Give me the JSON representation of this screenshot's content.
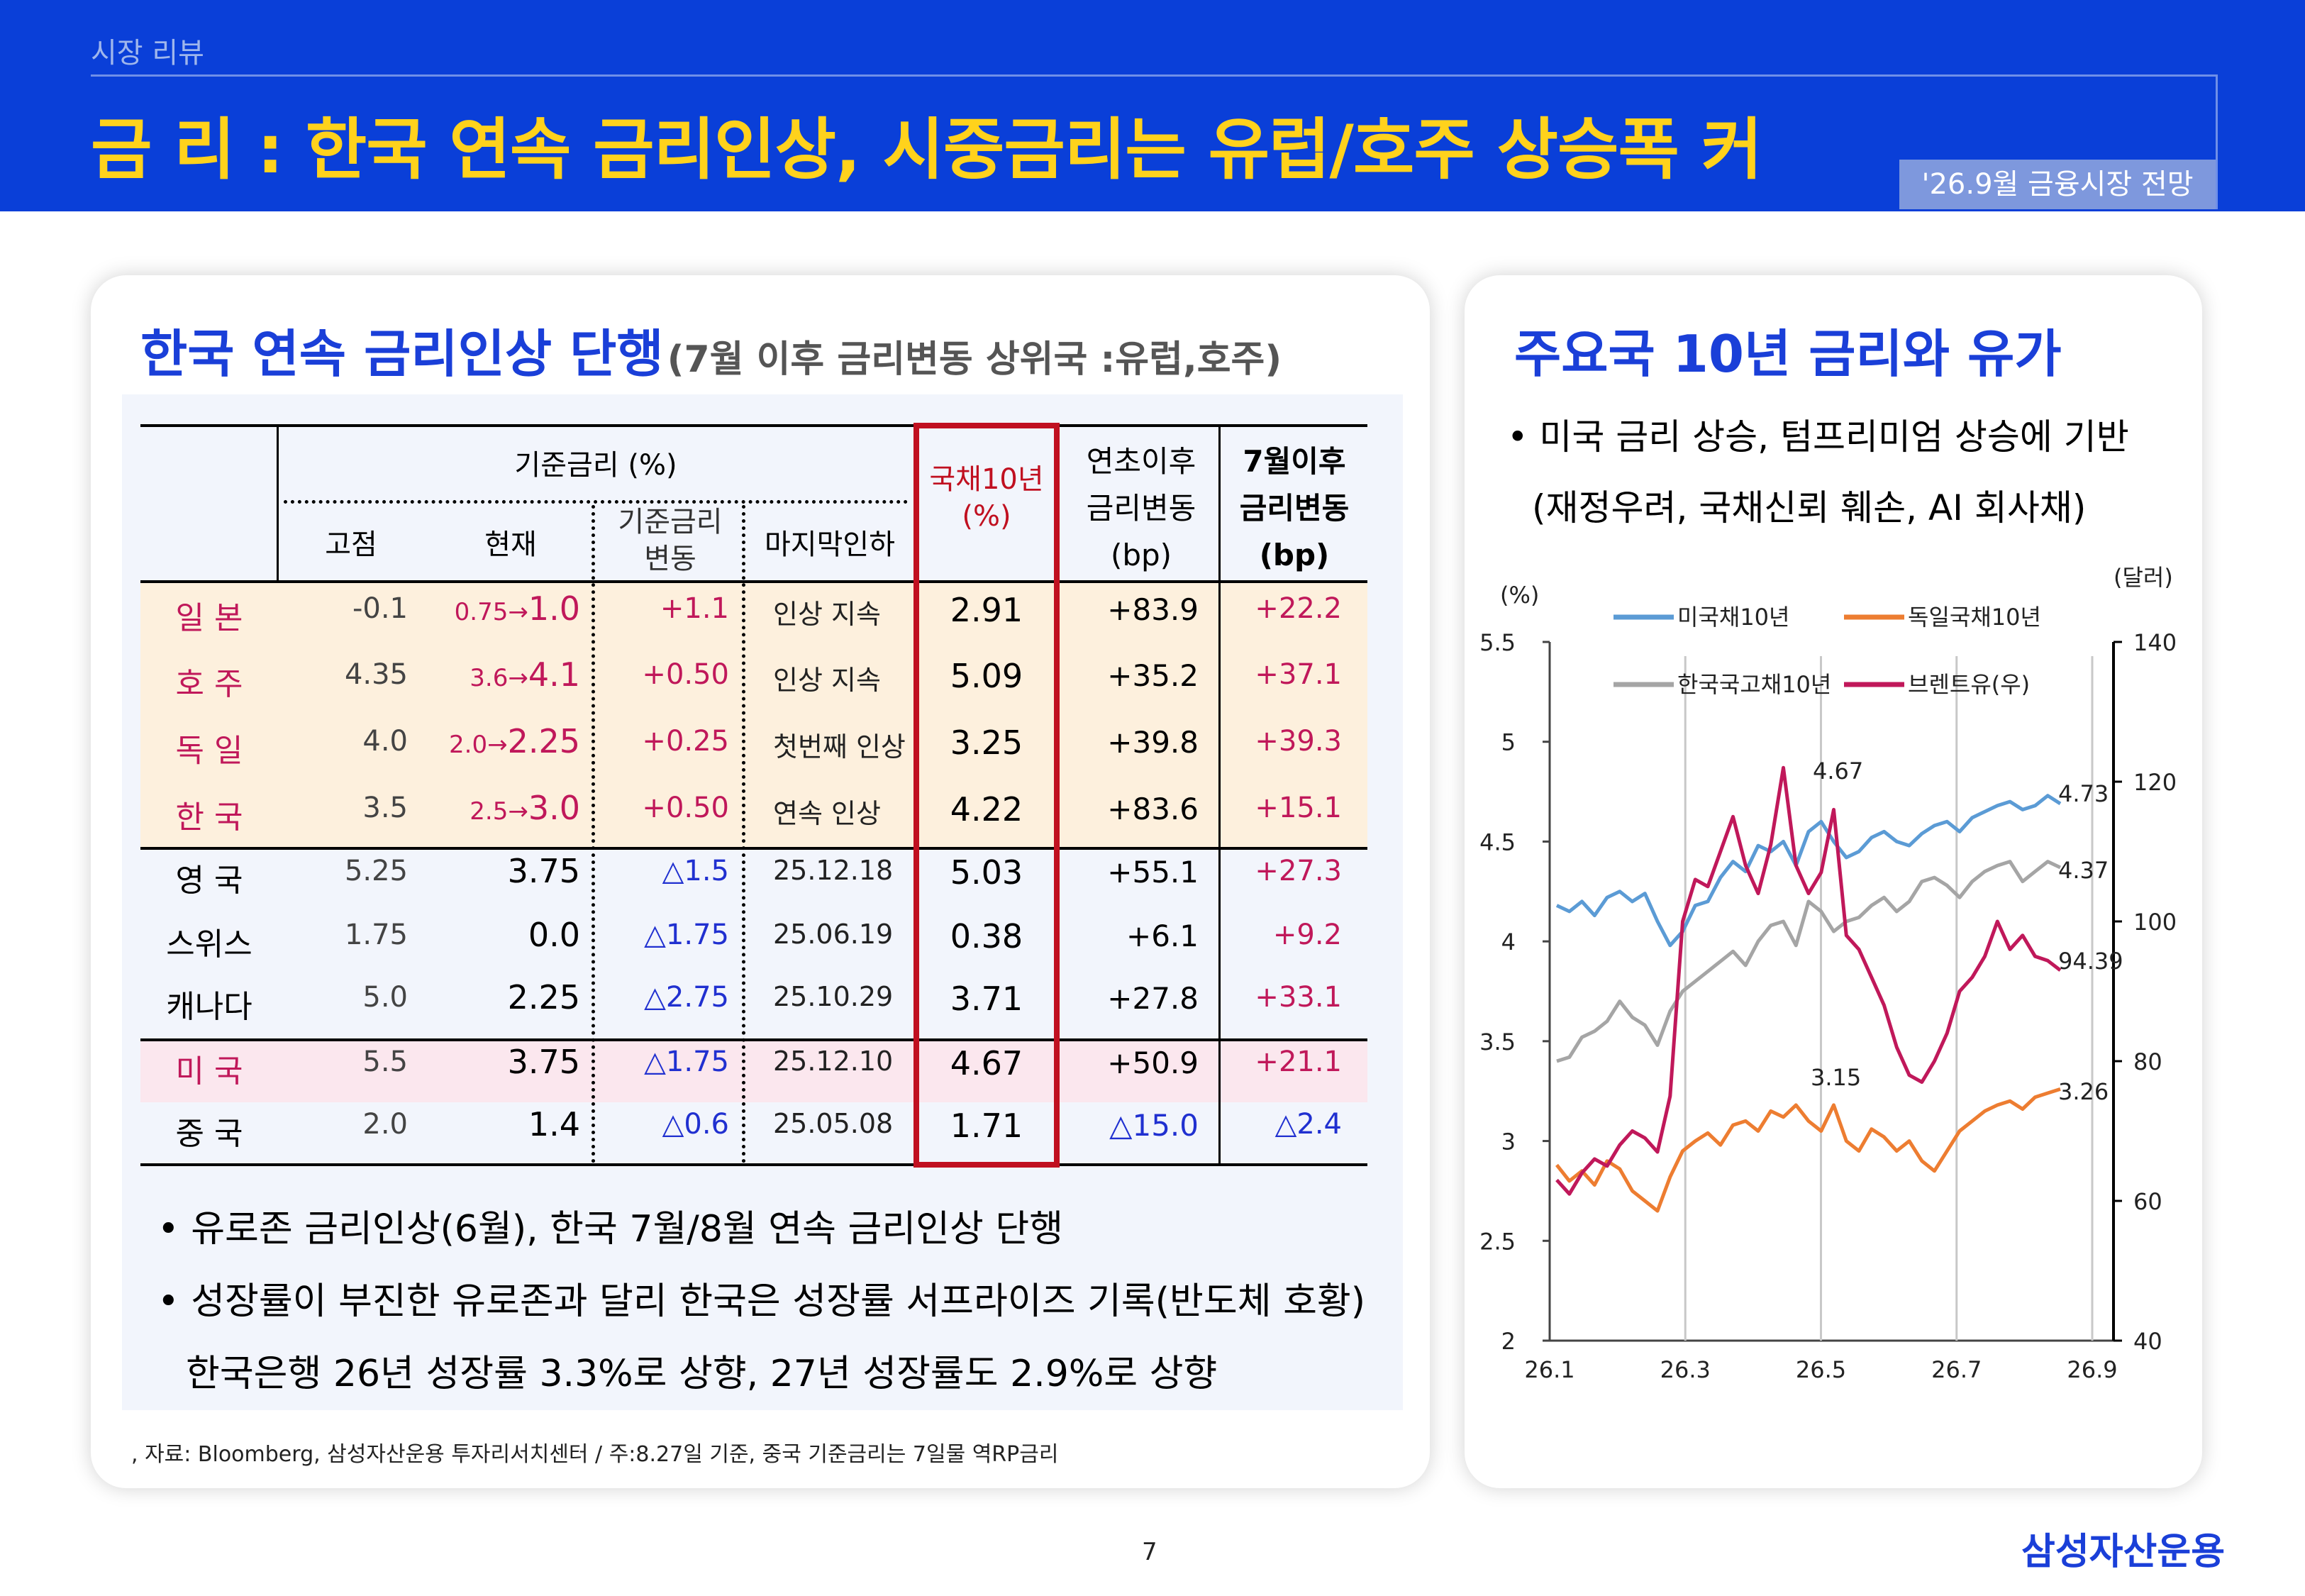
{
  "header": {
    "section": "시장 리뷰",
    "title": "금   리 : 한국 연속 금리인상, 시중금리는 유럽/호주 상승폭 커",
    "badge": "'26.9월 금융시장 전망"
  },
  "left": {
    "title_main": "한국 연속 금리인상 단행",
    "title_sub": "(7월 이후 금리변동 상위국 :유럽,호주)",
    "table": {
      "headers": {
        "base_rate": "기준금리 (%)",
        "peak": "고점",
        "current": "현재",
        "change_line1": "기준금리",
        "change_line2": "변동",
        "last_cut": "마지막인하",
        "bond10_line1": "국채10년",
        "bond10_line2": "(%)",
        "ytd_line1": "연초이후",
        "ytd_line2": "금리변동",
        "ytd_line3": "(bp)",
        "july_line1": "7월이후",
        "july_line2": "금리변동",
        "july_line3": "(bp)"
      },
      "rows": [
        {
          "country": "일   본",
          "peak": "-0.1",
          "cur_from": "0.75",
          "cur_to": "1.0",
          "change": "+1.1",
          "last": "인상 지속",
          "bond": "2.91",
          "ytd": "+83.9",
          "july": "+22.2"
        },
        {
          "country": "호   주",
          "peak": "4.35",
          "cur_from": "3.6",
          "cur_to": "4.1",
          "change": "+0.50",
          "last": "인상 지속",
          "bond": "5.09",
          "ytd": "+35.2",
          "july": "+37.1"
        },
        {
          "country": "독   일",
          "peak": "4.0",
          "cur_from": "2.0",
          "cur_to": "2.25",
          "change": "+0.25",
          "last": "첫번째 인상",
          "bond": "3.25",
          "ytd": "+39.8",
          "july": "+39.3"
        },
        {
          "country": "한   국",
          "peak": "3.5",
          "cur_from": "2.5",
          "cur_to": "3.0",
          "change": "+0.50",
          "last": "연속 인상",
          "bond": "4.22",
          "ytd": "+83.6",
          "july": "+15.1"
        },
        {
          "country": "영   국",
          "peak": "5.25",
          "cur_from": "",
          "cur_to": "3.75",
          "change": "△1.5",
          "last": "25.12.18",
          "bond": "5.03",
          "ytd": "+55.1",
          "july": "+27.3"
        },
        {
          "country": "스위스",
          "peak": "1.75",
          "cur_from": "",
          "cur_to": "0.0",
          "change": "△1.75",
          "last": "25.06.19",
          "bond": "0.38",
          "ytd": "+6.1",
          "july": "+9.2"
        },
        {
          "country": "캐나다",
          "peak": "5.0",
          "cur_from": "",
          "cur_to": "2.25",
          "change": "△2.75",
          "last": "25.10.29",
          "bond": "3.71",
          "ytd": "+27.8",
          "july": "+33.1"
        },
        {
          "country": "미   국",
          "peak": "5.5",
          "cur_from": "",
          "cur_to": "3.75",
          "change": "△1.75",
          "last": "25.12.10",
          "bond": "4.67",
          "ytd": "+50.9",
          "july": "+21.1"
        },
        {
          "country": "중   국",
          "peak": "2.0",
          "cur_from": "",
          "cur_to": "1.4",
          "change": "△0.6",
          "last": "25.05.08",
          "bond": "1.71",
          "ytd": "△15.0",
          "july": "△2.4"
        }
      ]
    },
    "bullets": [
      "• 유로존 금리인상(6월), 한국 7월/8월 연속 금리인상 단행",
      "• 성장률이 부진한 유로존과 달리 한국은 성장률 서프라이즈 기록(반도체 호황)",
      "한국은행 26년 성장률 3.3%로 상향, 27년 성장률도 2.9%로 상향"
    ],
    "source": ", 자료: Bloomberg, 삼성자산운용 투자리서치센터 / 주:8.27일 기준, 중국 기준금리는 7일물 역RP금리"
  },
  "right": {
    "title": "주요국 10년 금리와 유가",
    "bullet1": "• 미국 금리 상승, 텀프리미엄 상승에 기반",
    "bullet2": "(재정우려, 국채신뢰 훼손, AI 회사채)"
  },
  "colors": {
    "us": "#5b9bd5",
    "de": "#ed7d31",
    "kr": "#a5a5a5",
    "brent": "#c0185a",
    "title_blue": "#1a3fd8",
    "header_bg": "#0a3fd8",
    "title_yellow": "#ffd21c"
  },
  "chart_data": {
    "type": "line",
    "y_left_label": "(%)",
    "y_right_label": "(달러)",
    "y_left_range": [
      2,
      5.5
    ],
    "y_right_range": [
      40,
      140
    ],
    "y_left_ticks": [
      "2",
      "2.5",
      "3",
      "3.5",
      "4",
      "4.5",
      "5",
      "5.5"
    ],
    "y_right_ticks": [
      "40",
      "60",
      "80",
      "100",
      "120",
      "140"
    ],
    "x_ticks": [
      "26.1",
      "26.3",
      "26.5",
      "26.7",
      "26.9"
    ],
    "series": [
      {
        "name": "미국채10년",
        "axis": "left",
        "color": "#5b9bd5",
        "values": [
          4.18,
          4.15,
          4.2,
          4.13,
          4.22,
          4.25,
          4.2,
          4.24,
          4.1,
          3.98,
          4.05,
          4.18,
          4.2,
          4.32,
          4.4,
          4.35,
          4.48,
          4.45,
          4.5,
          4.38,
          4.55,
          4.6,
          4.5,
          4.42,
          4.45,
          4.52,
          4.55,
          4.5,
          4.48,
          4.54,
          4.58,
          4.6,
          4.55,
          4.62,
          4.65,
          4.68,
          4.7,
          4.66,
          4.68,
          4.73,
          4.69
        ]
      },
      {
        "name": "독일국채10년",
        "axis": "left",
        "color": "#ed7d31",
        "values": [
          2.88,
          2.8,
          2.85,
          2.78,
          2.9,
          2.86,
          2.75,
          2.7,
          2.65,
          2.82,
          2.95,
          3.0,
          3.04,
          2.98,
          3.08,
          3.1,
          3.05,
          3.15,
          3.12,
          3.18,
          3.1,
          3.05,
          3.18,
          3.0,
          2.95,
          3.06,
          3.02,
          2.95,
          3.0,
          2.9,
          2.85,
          2.95,
          3.05,
          3.1,
          3.15,
          3.18,
          3.2,
          3.16,
          3.22,
          3.24,
          3.26
        ]
      },
      {
        "name": "한국국고채10년",
        "axis": "left",
        "color": "#a5a5a5",
        "values": [
          3.4,
          3.42,
          3.52,
          3.55,
          3.6,
          3.7,
          3.62,
          3.58,
          3.48,
          3.65,
          3.75,
          3.8,
          3.85,
          3.9,
          3.95,
          3.88,
          4.0,
          4.08,
          4.1,
          3.98,
          4.2,
          4.15,
          4.05,
          4.1,
          4.12,
          4.18,
          4.22,
          4.15,
          4.2,
          4.3,
          4.32,
          4.28,
          4.22,
          4.3,
          4.35,
          4.38,
          4.4,
          4.3,
          4.35,
          4.4,
          4.37
        ]
      },
      {
        "name": "브렌트유(우)",
        "axis": "right",
        "color": "#c0185a",
        "values": [
          63,
          61,
          64,
          66,
          65,
          68,
          70,
          69,
          67,
          75,
          100,
          106,
          105,
          110,
          115,
          108,
          104,
          111,
          122,
          108,
          104,
          107,
          116,
          98,
          96,
          92,
          88,
          82,
          78,
          77,
          80,
          84,
          90,
          92,
          95,
          100,
          96,
          98,
          95,
          94.39,
          93
        ]
      }
    ],
    "annotations": [
      "4.67",
      "4.73",
      "4.37",
      "94.39",
      "3.15",
      "3.26"
    ]
  },
  "footer": {
    "page": "7",
    "brand": "삼성자산운용"
  }
}
